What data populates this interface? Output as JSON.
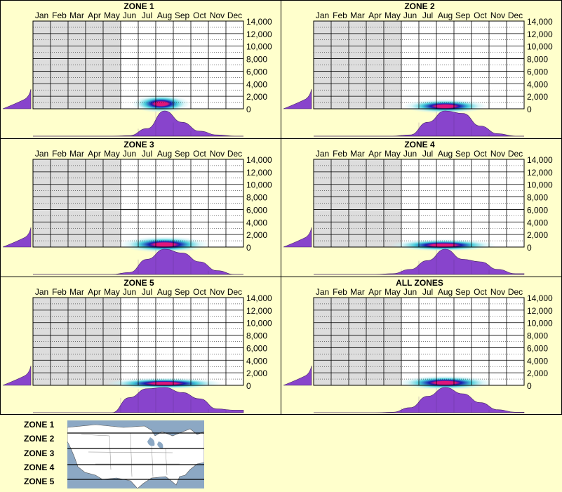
{
  "months": [
    "Jan",
    "Feb",
    "Mar",
    "Apr",
    "May",
    "Jun",
    "Jul",
    "Aug",
    "Sep",
    "Oct",
    "Nov",
    "Dec"
  ],
  "y_ticks": [
    "14,000",
    "12,000",
    "10,000",
    "8,000",
    "6,000",
    "4,000",
    "2,000",
    "0"
  ],
  "colors": {
    "background": "#ffffcc",
    "grid_shaded": "#dddddd",
    "grid_white": "#ffffff",
    "profile_fill": "#8844cc",
    "heat_core": "#e0157a",
    "heat_mid": "#1a1ab0",
    "heat_outer": "#31c6d6",
    "heat_faint": "#c6f0f4",
    "map_water": "#8ca8c4",
    "map_land": "#ffffff"
  },
  "legend": {
    "zones": [
      "ZONE 1",
      "ZONE 2",
      "ZONE 3",
      "ZONE 4",
      "ZONE 5"
    ],
    "map_icon": "north-america-zone-map"
  },
  "chart_data": [
    {
      "type": "heatmap",
      "title": "ZONE 1",
      "xlabel": "",
      "ylabel": "",
      "ylim": [
        0,
        14000
      ],
      "x_categories": [
        "Jan",
        "Feb",
        "Mar",
        "Apr",
        "May",
        "Jun",
        "Jul",
        "Aug",
        "Sep",
        "Oct",
        "Nov",
        "Dec"
      ],
      "shaded_months": [
        0,
        1,
        2,
        3,
        4
      ],
      "density_center": {
        "month": 7.3,
        "elevation": 800
      },
      "density_spread": {
        "month": 1.1,
        "elevation": 900
      },
      "monthly_profile": [
        0,
        0,
        0,
        0,
        0,
        0.02,
        0.3,
        1.0,
        0.55,
        0.2,
        0.05,
        0
      ],
      "elevation_profile": [
        0.12,
        0.3,
        0.55,
        1.0,
        0,
        0,
        0,
        0,
        0,
        0,
        0,
        0,
        0,
        0,
        0,
        0
      ]
    },
    {
      "type": "heatmap",
      "title": "ZONE 2",
      "xlabel": "",
      "ylabel": "",
      "ylim": [
        0,
        14000
      ],
      "x_categories": [
        "Jan",
        "Feb",
        "Mar",
        "Apr",
        "May",
        "Jun",
        "Jul",
        "Aug",
        "Sep",
        "Oct",
        "Nov",
        "Dec"
      ],
      "shaded_months": [
        0,
        1,
        2,
        3,
        4
      ],
      "density_center": {
        "month": 7.5,
        "elevation": 400
      },
      "density_spread": {
        "month": 1.6,
        "elevation": 700
      },
      "monthly_profile": [
        0,
        0,
        0,
        0,
        0,
        0.05,
        0.55,
        1.0,
        0.9,
        0.4,
        0.1,
        0
      ],
      "elevation_profile": [
        0.2,
        0.35,
        0.6,
        1.0,
        0,
        0,
        0,
        0,
        0,
        0,
        0,
        0,
        0,
        0,
        0,
        0
      ]
    },
    {
      "type": "heatmap",
      "title": "ZONE 3",
      "xlabel": "",
      "ylabel": "",
      "ylim": [
        0,
        14000
      ],
      "x_categories": [
        "Jan",
        "Feb",
        "Mar",
        "Apr",
        "May",
        "Jun",
        "Jul",
        "Aug",
        "Sep",
        "Oct",
        "Nov",
        "Dec"
      ],
      "shaded_months": [
        0,
        1,
        2,
        3,
        4
      ],
      "density_center": {
        "month": 7.5,
        "elevation": 400
      },
      "density_spread": {
        "month": 1.7,
        "elevation": 800
      },
      "monthly_profile": [
        0,
        0,
        0,
        0,
        0,
        0.08,
        0.6,
        1.0,
        0.85,
        0.5,
        0.15,
        0
      ],
      "elevation_profile": [
        0.15,
        0.3,
        0.55,
        1.0,
        0,
        0,
        0,
        0,
        0,
        0,
        0,
        0,
        0,
        0,
        0,
        0
      ]
    },
    {
      "type": "heatmap",
      "title": "ZONE 4",
      "xlabel": "",
      "ylabel": "",
      "ylim": [
        0,
        14000
      ],
      "x_categories": [
        "Jan",
        "Feb",
        "Mar",
        "Apr",
        "May",
        "Jun",
        "Jul",
        "Aug",
        "Sep",
        "Oct",
        "Nov",
        "Dec"
      ],
      "shaded_months": [
        0,
        1,
        2,
        3,
        4
      ],
      "density_center": {
        "month": 7.4,
        "elevation": 300
      },
      "density_spread": {
        "month": 2.0,
        "elevation": 600
      },
      "monthly_profile": [
        0,
        0,
        0,
        0,
        0.03,
        0.2,
        0.55,
        1.0,
        0.6,
        0.5,
        0.2,
        0.03
      ],
      "elevation_profile": [
        0.15,
        0.25,
        0.4,
        1.0,
        0,
        0,
        0,
        0,
        0,
        0,
        0,
        0,
        0,
        0,
        0,
        0
      ]
    },
    {
      "type": "heatmap",
      "title": "ZONE 5",
      "xlabel": "",
      "ylabel": "",
      "ylim": [
        0,
        14000
      ],
      "x_categories": [
        "Jan",
        "Feb",
        "Mar",
        "Apr",
        "May",
        "Jun",
        "Jul",
        "Aug",
        "Sep",
        "Oct",
        "Nov",
        "Dec"
      ],
      "shaded_months": [
        0,
        1,
        2,
        3,
        4
      ],
      "density_center": {
        "month": 7.5,
        "elevation": 300
      },
      "density_spread": {
        "month": 2.2,
        "elevation": 400
      },
      "monthly_profile": [
        0,
        0,
        0,
        0,
        0,
        0.6,
        0.95,
        1.0,
        0.8,
        0.55,
        0.15,
        0.1
      ],
      "elevation_profile": [
        0.4,
        0.5,
        0.6,
        0.7,
        0,
        0,
        0,
        0,
        0,
        0,
        0,
        0,
        0,
        0,
        0,
        0
      ]
    },
    {
      "type": "heatmap",
      "title": "ALL ZONES",
      "xlabel": "",
      "ylabel": "",
      "ylim": [
        0,
        14000
      ],
      "x_categories": [
        "Jan",
        "Feb",
        "Mar",
        "Apr",
        "May",
        "Jun",
        "Jul",
        "Aug",
        "Sep",
        "Oct",
        "Nov",
        "Dec"
      ],
      "shaded_months": [
        0,
        1,
        2,
        3,
        4
      ],
      "density_center": {
        "month": 7.5,
        "elevation": 400
      },
      "density_spread": {
        "month": 1.8,
        "elevation": 700
      },
      "monthly_profile": [
        0,
        0,
        0,
        0,
        0.02,
        0.2,
        0.65,
        1.0,
        0.75,
        0.4,
        0.12,
        0.02
      ],
      "elevation_profile": [
        0.15,
        0.3,
        0.55,
        1.0,
        0,
        0,
        0,
        0,
        0,
        0,
        0,
        0,
        0,
        0,
        0,
        0
      ]
    }
  ]
}
